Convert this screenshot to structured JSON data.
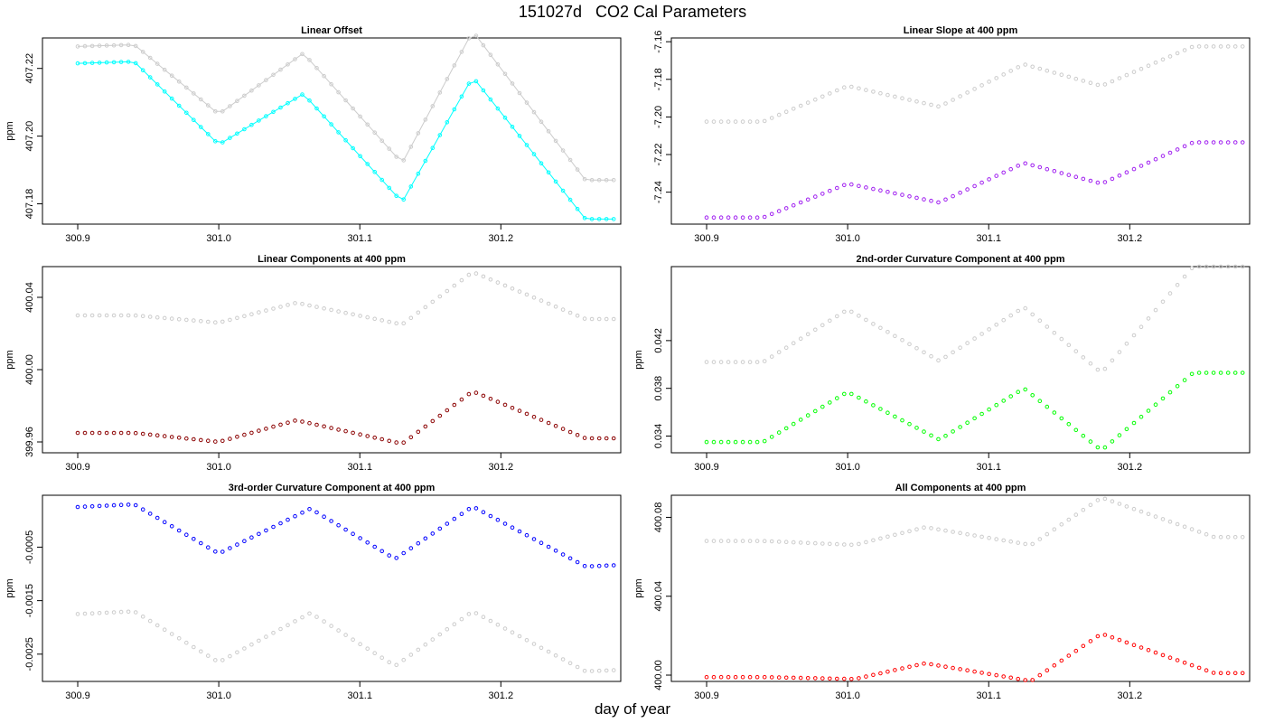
{
  "figure": {
    "title_id": "151027d",
    "title_text": "CO2 Cal Parameters",
    "xlabel": "day of year"
  },
  "chart_data": [
    {
      "type": "scatter",
      "title": "Linear Offset",
      "ylabel": "ppm",
      "xlim": [
        300.875,
        301.285
      ],
      "ylim": [
        407.174,
        407.229
      ],
      "xticks": [
        300.9,
        301.0,
        301.1,
        301.2
      ],
      "xtick_labels": [
        "300.9",
        "301.0",
        "301.1",
        "301.2"
      ],
      "yticks": [
        407.18,
        407.2,
        407.22
      ],
      "ytick_labels": [
        "407.18",
        "407.20",
        "407.22"
      ],
      "connect_lines": true,
      "series": [
        {
          "color": "#cccccc",
          "knots": [
            [
              300.9,
              407.2265
            ],
            [
              300.94,
              407.227
            ],
            [
              301.0,
              407.2065
            ],
            [
              301.06,
              407.2245
            ],
            [
              301.13,
              407.192
            ],
            [
              301.18,
              407.231
            ],
            [
              301.26,
              407.187
            ],
            [
              301.28,
              407.187
            ]
          ]
        },
        {
          "color": "#00ffff",
          "knots": [
            [
              300.9,
              407.2215
            ],
            [
              300.94,
              407.222
            ],
            [
              301.0,
              407.1975
            ],
            [
              301.06,
              407.2125
            ],
            [
              301.13,
              407.1805
            ],
            [
              301.18,
              407.2175
            ],
            [
              301.26,
              407.1755
            ],
            [
              301.28,
              407.1755
            ]
          ]
        }
      ]
    },
    {
      "type": "scatter",
      "title": "Linear Slope at 400 ppm",
      "ylabel": "",
      "xlim": [
        300.875,
        301.285
      ],
      "ylim": [
        -7.257,
        -7.158
      ],
      "xticks": [
        300.9,
        301.0,
        301.1,
        301.2
      ],
      "xtick_labels": [
        "300.9",
        "301.0",
        "301.1",
        "301.2"
      ],
      "yticks": [
        -7.24,
        -7.22,
        -7.2,
        -7.18,
        -7.16
      ],
      "ytick_labels": [
        "-7.24",
        "-7.22",
        "-7.20",
        "-7.18",
        "-7.16"
      ],
      "connect_lines": false,
      "series": [
        {
          "color": "#cccccc",
          "knots": [
            [
              300.9,
              -7.2025
            ],
            [
              300.94,
              -7.2025
            ],
            [
              301.0,
              -7.1835
            ],
            [
              301.065,
              -7.1945
            ],
            [
              301.125,
              -7.172
            ],
            [
              301.18,
              -7.1835
            ],
            [
              301.245,
              -7.1625
            ],
            [
              301.28,
              -7.1625
            ]
          ]
        },
        {
          "color": "#a020f0",
          "knots": [
            [
              300.9,
              -7.2535
            ],
            [
              300.94,
              -7.2535
            ],
            [
              301.0,
              -7.2355
            ],
            [
              301.065,
              -7.2455
            ],
            [
              301.125,
              -7.2245
            ],
            [
              301.18,
              -7.2355
            ],
            [
              301.245,
              -7.2135
            ],
            [
              301.28,
              -7.2135
            ]
          ]
        }
      ]
    },
    {
      "type": "scatter",
      "title": "Linear Components at 400 ppm",
      "ylabel": "ppm",
      "xlim": [
        300.875,
        301.285
      ],
      "ylim": [
        399.954,
        400.057
      ],
      "xticks": [
        300.9,
        301.0,
        301.1,
        301.2
      ],
      "xtick_labels": [
        "300.9",
        "301.0",
        "301.1",
        "301.2"
      ],
      "yticks": [
        399.96,
        400.0,
        400.04
      ],
      "ytick_labels": [
        "399.96",
        "400.00",
        "400.04"
      ],
      "connect_lines": false,
      "series": [
        {
          "color": "#cccccc",
          "knots": [
            [
              300.9,
              400.03
            ],
            [
              300.94,
              400.03
            ],
            [
              301.0,
              400.026
            ],
            [
              301.055,
              400.037
            ],
            [
              301.13,
              400.025
            ],
            [
              301.18,
              400.054
            ],
            [
              301.26,
              400.028
            ],
            [
              301.28,
              400.028
            ]
          ]
        },
        {
          "color": "#8b0000",
          "knots": [
            [
              300.9,
              399.965
            ],
            [
              300.94,
              399.965
            ],
            [
              301.0,
              399.96
            ],
            [
              301.055,
              399.972
            ],
            [
              301.13,
              399.959
            ],
            [
              301.18,
              399.988
            ],
            [
              301.26,
              399.962
            ],
            [
              301.28,
              399.962
            ]
          ]
        }
      ]
    },
    {
      "type": "scatter",
      "title": "2nd-order Curvature Component at 400 ppm",
      "ylabel": "ppm",
      "xlim": [
        300.875,
        301.285
      ],
      "ylim": [
        0.0326,
        0.0482
      ],
      "xticks": [
        300.9,
        301.0,
        301.1,
        301.2
      ],
      "xtick_labels": [
        "300.9",
        "301.0",
        "301.1",
        "301.2"
      ],
      "yticks": [
        0.034,
        0.038,
        0.042
      ],
      "ytick_labels": [
        "0.034",
        "0.038",
        "0.042"
      ],
      "connect_lines": false,
      "series": [
        {
          "color": "#cccccc",
          "knots": [
            [
              300.9,
              0.0402
            ],
            [
              300.94,
              0.0402
            ],
            [
              301.0,
              0.0446
            ],
            [
              301.065,
              0.0403
            ],
            [
              301.125,
              0.0448
            ],
            [
              301.18,
              0.0393
            ],
            [
              301.245,
              0.0482
            ],
            [
              301.28,
              0.0482
            ]
          ]
        },
        {
          "color": "#00ff00",
          "knots": [
            [
              300.9,
              0.0335
            ],
            [
              300.94,
              0.0335
            ],
            [
              301.0,
              0.0377
            ],
            [
              301.065,
              0.0337
            ],
            [
              301.125,
              0.038
            ],
            [
              301.18,
              0.0328
            ],
            [
              301.245,
              0.0393
            ],
            [
              301.28,
              0.0393
            ]
          ]
        }
      ]
    },
    {
      "type": "scatter",
      "title": "3rd-order Curvature Component at 400 ppm",
      "ylabel": "ppm",
      "xlim": [
        300.875,
        301.285
      ],
      "ylim": [
        -0.00301,
        0.00047
      ],
      "xticks": [
        300.9,
        301.0,
        301.1,
        301.2
      ],
      "xtick_labels": [
        "300.9",
        "301.0",
        "301.1",
        "301.2"
      ],
      "yticks": [
        -0.0025,
        -0.0015,
        -0.0005
      ],
      "ytick_labels": [
        "-0.0025",
        "-0.0015",
        "-0.0005"
      ],
      "connect_lines": false,
      "series": [
        {
          "color": "#cccccc",
          "knots": [
            [
              300.9,
              -0.00175
            ],
            [
              300.94,
              -0.0017
            ],
            [
              301.0,
              -0.00265
            ],
            [
              301.065,
              -0.00173
            ],
            [
              301.125,
              -0.00272
            ],
            [
              301.18,
              -0.0017
            ],
            [
              301.26,
              -0.00282
            ],
            [
              301.28,
              -0.0028
            ]
          ]
        },
        {
          "color": "#0000ff",
          "knots": [
            [
              300.9,
              0.00025
            ],
            [
              300.94,
              0.0003
            ],
            [
              301.0,
              -0.00062
            ],
            [
              301.065,
              0.00022
            ],
            [
              301.125,
              -0.00072
            ],
            [
              301.18,
              0.00026
            ],
            [
              301.26,
              -0.00086
            ],
            [
              301.28,
              -0.00084
            ]
          ]
        }
      ]
    },
    {
      "type": "scatter",
      "title": "All Components at 400 ppm",
      "ylabel": "ppm",
      "xlim": [
        300.875,
        301.285
      ],
      "ylim": [
        399.9968,
        400.0912
      ],
      "xticks": [
        300.9,
        301.0,
        301.1,
        301.2
      ],
      "xtick_labels": [
        "300.9",
        "301.0",
        "301.1",
        "301.2"
      ],
      "yticks": [
        400.0,
        400.04,
        400.08
      ],
      "ytick_labels": [
        "400.00",
        "400.04",
        "400.08"
      ],
      "connect_lines": false,
      "series": [
        {
          "color": "#cccccc",
          "knots": [
            [
              300.9,
              400.068
            ],
            [
              300.94,
              400.068
            ],
            [
              301.005,
              400.066
            ],
            [
              301.055,
              400.075
            ],
            [
              301.13,
              400.066
            ],
            [
              301.18,
              400.09
            ],
            [
              301.26,
              400.07
            ],
            [
              301.28,
              400.07
            ]
          ]
        },
        {
          "color": "#ff0000",
          "knots": [
            [
              300.9,
              399.999
            ],
            [
              300.94,
              399.999
            ],
            [
              301.005,
              399.998
            ],
            [
              301.055,
              400.006
            ],
            [
              301.13,
              399.997
            ],
            [
              301.18,
              400.021
            ],
            [
              301.26,
              400.001
            ],
            [
              301.28,
              400.001
            ]
          ]
        }
      ]
    }
  ]
}
